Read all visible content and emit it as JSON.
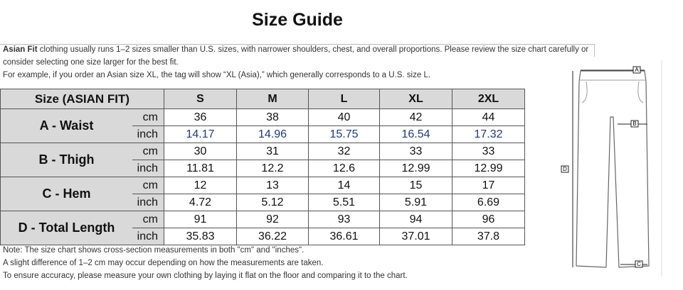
{
  "header": {
    "title": "Size Guide"
  },
  "intro": {
    "bold": "Asian Fit",
    "lines": [
      " clothing usually runs 1–2 sizes smaller than U.S. sizes, with narrower shoulders, chest, and overall proportions. Please review the size chart carefully or",
      "consider selecting one size larger for the best fit.",
      "For example, if you order an Asian size XL, the tag will show “XL (Asia),” which generally corresponds to a U.S. size L."
    ]
  },
  "table": {
    "header": [
      "Size (ASIAN FIT)",
      "S",
      "M",
      "L",
      "XL",
      "2XL"
    ],
    "rows": [
      {
        "label": "A - Waist",
        "units": [
          "cm",
          "inch"
        ],
        "cm": [
          36,
          38,
          40,
          42,
          44
        ],
        "inch": [
          14.17,
          14.96,
          15.75,
          16.54,
          17.32
        ]
      },
      {
        "label": "B - Thigh",
        "units": [
          "cm",
          "inch"
        ],
        "cm": [
          30,
          31,
          32,
          33,
          33
        ],
        "inch": [
          11.81,
          12.2,
          12.6,
          12.99,
          12.99
        ]
      },
      {
        "label": "C - Hem",
        "units": [
          "cm",
          "inch"
        ],
        "cm": [
          12,
          13,
          14,
          15,
          17
        ],
        "inch": [
          4.72,
          5.12,
          5.51,
          5.91,
          6.69
        ]
      },
      {
        "label": "D - Total Length",
        "units": [
          "cm",
          "inch"
        ],
        "cm": [
          91,
          92,
          93,
          94,
          96
        ],
        "inch": [
          35.83,
          36.22,
          36.61,
          37.01,
          37.8
        ]
      }
    ]
  },
  "notes": [
    "Note: The size chart shows cross-section measurements in both \"cm\" and \"inches\".",
    "A slight difference of 1–2 cm may occur depending on how the measurements are taken.",
    "To ensure accuracy, please measure your own clothing by laying it flat on the floor and comparing it to the chart."
  ],
  "diagram": {
    "labels": [
      "A",
      "B",
      "C",
      "D"
    ]
  }
}
